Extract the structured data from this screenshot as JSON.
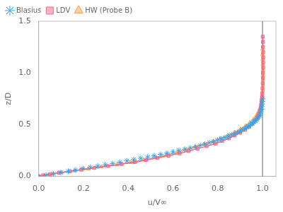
{
  "chart_data": {
    "type": "scatter",
    "xlabel": "u/V∞",
    "ylabel": "z/D",
    "xlim": [
      0.0,
      1.06
    ],
    "ylim": [
      0.0,
      1.5
    ],
    "xticks": [
      {
        "value": 0.0,
        "label": "0.0"
      },
      0.2,
      0.4,
      0.6,
      0.8,
      {
        "value": 1.0,
        "label": "1.0"
      }
    ],
    "yticks": [
      {
        "value": 0.0,
        "label": "0.0"
      },
      0.5,
      {
        "value": 1.0,
        "label": "1.0"
      },
      1.5
    ],
    "grid": false,
    "legend": "upper left",
    "vline": 1.0,
    "series": [
      {
        "name": "Blasius",
        "marker": "star",
        "line_style": "none",
        "x": [
          0.0,
          0.033,
          0.066,
          0.099,
          0.132,
          0.165,
          0.198,
          0.231,
          0.264,
          0.297,
          0.33,
          0.362,
          0.394,
          0.425,
          0.456,
          0.487,
          0.516,
          0.545,
          0.573,
          0.6,
          0.627,
          0.652,
          0.677,
          0.7,
          0.722,
          0.743,
          0.762,
          0.781,
          0.799,
          0.816,
          0.832,
          0.848,
          0.862,
          0.876,
          0.888,
          0.9,
          0.911,
          0.921,
          0.93,
          0.939,
          0.947,
          0.955,
          0.962,
          0.968,
          0.974,
          0.979,
          0.983,
          0.987,
          0.99,
          0.993,
          0.995,
          0.997,
          0.998,
          0.999,
          1.0
        ],
        "values": [
          0.0,
          0.012,
          0.025,
          0.037,
          0.05,
          0.062,
          0.075,
          0.087,
          0.1,
          0.112,
          0.125,
          0.137,
          0.15,
          0.162,
          0.175,
          0.187,
          0.2,
          0.212,
          0.225,
          0.237,
          0.25,
          0.262,
          0.275,
          0.287,
          0.3,
          0.312,
          0.325,
          0.337,
          0.35,
          0.362,
          0.375,
          0.387,
          0.4,
          0.412,
          0.425,
          0.437,
          0.45,
          0.462,
          0.475,
          0.487,
          0.5,
          0.512,
          0.525,
          0.537,
          0.55,
          0.562,
          0.575,
          0.587,
          0.6,
          0.625,
          0.65,
          0.675,
          0.7,
          0.725,
          0.75
        ]
      },
      {
        "name": "LDV",
        "marker": "square",
        "line_style": "solid",
        "x": [
          0.0,
          0.02,
          0.05,
          0.09,
          0.14,
          0.19,
          0.25,
          0.31,
          0.37,
          0.43,
          0.48,
          0.53,
          0.58,
          0.63,
          0.67,
          0.71,
          0.75,
          0.79,
          0.82,
          0.85,
          0.875,
          0.9,
          0.922,
          0.94,
          0.955,
          0.967,
          0.976,
          0.983,
          0.988,
          0.992,
          0.995,
          0.997,
          0.998,
          0.999,
          1.0,
          1.001,
          1.002,
          1.002,
          1.003,
          1.003,
          1.003,
          1.003,
          1.002,
          1.002,
          1.001
        ],
        "values": [
          0.0,
          0.01,
          0.022,
          0.035,
          0.05,
          0.065,
          0.082,
          0.1,
          0.118,
          0.138,
          0.158,
          0.178,
          0.2,
          0.222,
          0.245,
          0.268,
          0.292,
          0.317,
          0.342,
          0.368,
          0.395,
          0.422,
          0.45,
          0.478,
          0.508,
          0.538,
          0.568,
          0.6,
          0.633,
          0.667,
          0.7,
          0.733,
          0.767,
          0.8,
          0.85,
          0.9,
          0.95,
          1.0,
          1.05,
          1.1,
          1.15,
          1.2,
          1.25,
          1.3,
          1.35
        ]
      },
      {
        "name": "HW (Probe B)",
        "marker": "triangle",
        "line_style": "solid",
        "x": [
          0.0,
          0.025,
          0.06,
          0.1,
          0.16,
          0.22,
          0.28,
          0.35,
          0.41,
          0.47,
          0.52,
          0.57,
          0.62,
          0.66,
          0.7,
          0.74,
          0.78,
          0.81,
          0.845,
          0.875,
          0.902,
          0.925,
          0.944,
          0.96,
          0.973,
          0.982,
          0.989,
          0.994,
          0.997,
          0.999,
          1.001,
          1.002,
          1.002,
          1.002,
          1.002,
          1.001,
          1.001,
          1.0,
          1.0
        ],
        "values": [
          0.0,
          0.01,
          0.022,
          0.037,
          0.054,
          0.072,
          0.092,
          0.113,
          0.135,
          0.158,
          0.182,
          0.207,
          0.232,
          0.258,
          0.285,
          0.312,
          0.34,
          0.368,
          0.397,
          0.427,
          0.458,
          0.49,
          0.522,
          0.555,
          0.59,
          0.625,
          0.66,
          0.7,
          0.74,
          0.78,
          0.83,
          0.88,
          0.93,
          0.98,
          1.03,
          1.08,
          1.13,
          1.18,
          1.23
        ]
      }
    ]
  }
}
